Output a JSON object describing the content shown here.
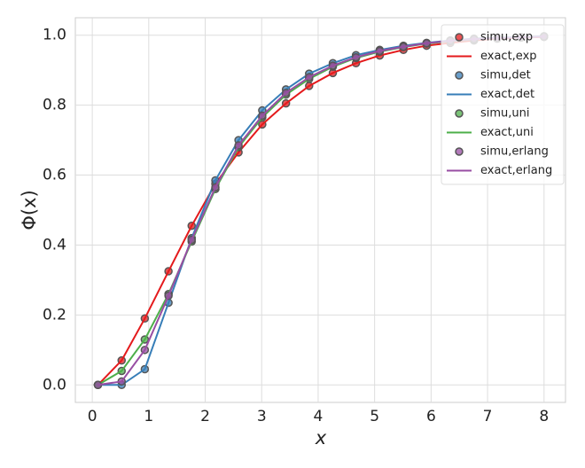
{
  "chart_data": {
    "type": "line",
    "xlabel": "x",
    "ylabel": "Φ(x)",
    "xlim": [
      -0.3,
      8.38
    ],
    "ylim": [
      -0.05,
      1.05
    ],
    "xticks": [
      0,
      1,
      2,
      3,
      4,
      5,
      6,
      7,
      8
    ],
    "yticks": [
      {
        "value": 0,
        "label": "0.0"
      },
      {
        "value": 0.2,
        "label": "0.2"
      },
      {
        "value": 0.4,
        "label": "0.4"
      },
      {
        "value": 0.6,
        "label": "0.6"
      },
      {
        "value": 0.8,
        "label": "0.8"
      },
      {
        "value": 1,
        "label": "1.0"
      }
    ],
    "grid": true,
    "legend": "upper right",
    "x": [
      0.1,
      0.52,
      0.93,
      1.35,
      1.76,
      2.18,
      2.59,
      3.01,
      3.43,
      3.84,
      4.26,
      4.67,
      5.09,
      5.51,
      5.92,
      6.34,
      6.76,
      7.17,
      7.59,
      8.0
    ],
    "series": [
      {
        "name": "simu,exp",
        "type": "scatter",
        "color": "#e41a1c",
        "values": [
          0,
          0.07,
          0.19,
          0.325,
          0.455,
          0.575,
          0.665,
          0.745,
          0.805,
          0.855,
          0.892,
          0.92,
          0.942,
          0.958,
          0.97,
          0.978,
          0.985,
          0.99,
          0.993,
          0.995
        ]
      },
      {
        "name": "exact,exp",
        "type": "line",
        "color": "#e41a1c",
        "values": [
          0,
          0.07,
          0.19,
          0.325,
          0.455,
          0.575,
          0.665,
          0.745,
          0.805,
          0.855,
          0.892,
          0.92,
          0.942,
          0.958,
          0.97,
          0.978,
          0.985,
          0.99,
          0.993,
          0.995
        ]
      },
      {
        "name": "simu,det",
        "type": "scatter",
        "color": "#377eb8",
        "values": [
          0,
          0,
          0.045,
          0.235,
          0.42,
          0.585,
          0.7,
          0.785,
          0.845,
          0.89,
          0.92,
          0.943,
          0.958,
          0.97,
          0.978,
          0.985,
          0.99,
          0.993,
          0.995,
          0.997
        ]
      },
      {
        "name": "exact,det",
        "type": "line",
        "color": "#377eb8",
        "values": [
          0,
          0,
          0.045,
          0.235,
          0.42,
          0.585,
          0.7,
          0.785,
          0.845,
          0.89,
          0.92,
          0.943,
          0.958,
          0.97,
          0.978,
          0.985,
          0.99,
          0.993,
          0.995,
          0.997
        ]
      },
      {
        "name": "simu,uni",
        "type": "scatter",
        "color": "#4daf4a",
        "values": [
          0,
          0.04,
          0.13,
          0.26,
          0.41,
          0.56,
          0.68,
          0.765,
          0.83,
          0.875,
          0.91,
          0.935,
          0.953,
          0.966,
          0.976,
          0.983,
          0.988,
          0.992,
          0.994,
          0.996
        ]
      },
      {
        "name": "exact,uni",
        "type": "line",
        "color": "#4daf4a",
        "values": [
          0,
          0.04,
          0.13,
          0.26,
          0.41,
          0.56,
          0.68,
          0.765,
          0.83,
          0.875,
          0.91,
          0.935,
          0.953,
          0.966,
          0.976,
          0.983,
          0.988,
          0.992,
          0.994,
          0.996
        ]
      },
      {
        "name": "simu,erlang",
        "type": "scatter",
        "color": "#984ea3",
        "values": [
          0,
          0.01,
          0.1,
          0.255,
          0.415,
          0.565,
          0.685,
          0.77,
          0.835,
          0.88,
          0.913,
          0.937,
          0.955,
          0.967,
          0.977,
          0.984,
          0.989,
          0.992,
          0.994,
          0.996
        ]
      },
      {
        "name": "exact,erlang",
        "type": "line",
        "color": "#984ea3",
        "values": [
          0,
          0.01,
          0.1,
          0.255,
          0.415,
          0.565,
          0.685,
          0.77,
          0.835,
          0.88,
          0.913,
          0.937,
          0.955,
          0.967,
          0.977,
          0.984,
          0.989,
          0.992,
          0.994,
          0.996
        ]
      }
    ]
  }
}
